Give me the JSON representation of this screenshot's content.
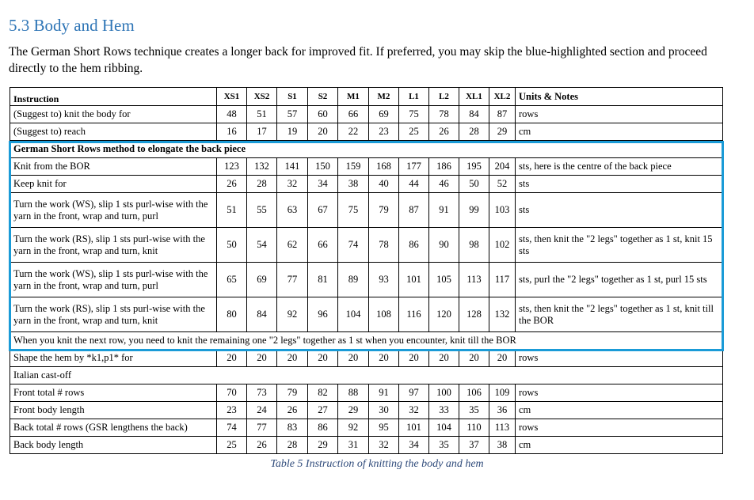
{
  "heading": "5.3 Body and Hem",
  "intro": "The German Short Rows technique creates a longer back for improved fit. If preferred, you may skip the blue-highlighted section and proceed directly to the hem ribbing.",
  "highlight_color": "#1a9bd7",
  "table": {
    "instruction_header": "Instruction",
    "sizes": [
      "XS1",
      "XS2",
      "S1",
      "S2",
      "M1",
      "M2",
      "L1",
      "L2",
      "XL1",
      "XL2"
    ],
    "notes_header": "Units & Notes",
    "rows": [
      {
        "label": "(Suggest to) knit the body for",
        "values": [
          48,
          51,
          57,
          60,
          66,
          69,
          75,
          78,
          84,
          87
        ],
        "note": "rows"
      },
      {
        "label": "(Suggest to) reach",
        "values": [
          16,
          17,
          19,
          20,
          22,
          23,
          25,
          26,
          28,
          29
        ],
        "note": "cm"
      },
      {
        "label": "German Short Rows method to elongate the back piece",
        "span": true,
        "bold": true,
        "gsr": true
      },
      {
        "label": "Knit from the BOR",
        "values": [
          123,
          132,
          141,
          150,
          159,
          168,
          177,
          186,
          195,
          204
        ],
        "note": "sts, here is the centre of the back piece",
        "gsr": true
      },
      {
        "label": "Keep knit for",
        "values": [
          26,
          28,
          32,
          34,
          38,
          40,
          44,
          46,
          50,
          52
        ],
        "note": "sts",
        "gsr": true
      },
      {
        "label": "Turn the work (WS), slip 1 sts purl-wise with the yarn in the front, wrap and turn, purl",
        "values": [
          51,
          55,
          63,
          67,
          75,
          79,
          87,
          91,
          99,
          103
        ],
        "note": "sts",
        "tall": true,
        "gsr": true
      },
      {
        "label": "Turn the work (RS), slip 1 sts purl-wise with the yarn in the front, wrap and turn, knit",
        "values": [
          50,
          54,
          62,
          66,
          74,
          78,
          86,
          90,
          98,
          102
        ],
        "note": "sts, then knit the \"2 legs\" together as 1 st, knit 15 sts",
        "tall": true,
        "gsr": true
      },
      {
        "label": "Turn the work (WS), slip 1 sts purl-wise with the yarn in the front, wrap and turn, purl",
        "values": [
          65,
          69,
          77,
          81,
          89,
          93,
          101,
          105,
          113,
          117
        ],
        "note": "sts, purl the \"2 legs\" together as 1 st, purl 15 sts",
        "tall": true,
        "gsr": true
      },
      {
        "label": "Turn the work (RS), slip 1 sts purl-wise with the yarn in the front, wrap and turn, knit",
        "values": [
          80,
          84,
          92,
          96,
          104,
          108,
          116,
          120,
          128,
          132
        ],
        "note": "sts, then knit the \"2 legs\" together as 1 st, knit till the BOR",
        "tall": true,
        "gsr": true
      },
      {
        "label": "When you knit the next row, you need to knit the remaining one \"2 legs\" together as 1 st when you encounter, knit till the BOR",
        "span": true,
        "gsr": true
      },
      {
        "label": "Shape the hem by *k1,p1* for",
        "values": [
          20,
          20,
          20,
          20,
          20,
          20,
          20,
          20,
          20,
          20
        ],
        "note": "rows"
      },
      {
        "label": "Italian cast-off",
        "span": true
      },
      {
        "label": "Front total # rows",
        "values": [
          70,
          73,
          79,
          82,
          88,
          91,
          97,
          100,
          106,
          109
        ],
        "note": "rows"
      },
      {
        "label": "Front body length",
        "values": [
          23,
          24,
          26,
          27,
          29,
          30,
          32,
          33,
          35,
          36
        ],
        "note": "cm"
      },
      {
        "label": "Back total # rows (GSR lengthens the back)",
        "values": [
          74,
          77,
          83,
          86,
          92,
          95,
          101,
          104,
          110,
          113
        ],
        "note": "rows"
      },
      {
        "label": "Back body length",
        "values": [
          25,
          26,
          28,
          29,
          31,
          32,
          34,
          35,
          37,
          38
        ],
        "note": "cm"
      }
    ]
  },
  "caption": "Table 5 Instruction of knitting the body and hem"
}
